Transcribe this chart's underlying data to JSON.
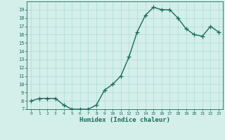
{
  "x": [
    0,
    1,
    2,
    3,
    4,
    5,
    6,
    7,
    8,
    9,
    10,
    11,
    12,
    13,
    14,
    15,
    16,
    17,
    18,
    19,
    20,
    21,
    22,
    23
  ],
  "y": [
    8.0,
    8.3,
    8.3,
    8.3,
    7.5,
    7.0,
    7.0,
    7.0,
    7.5,
    9.3,
    10.0,
    11.0,
    13.3,
    16.3,
    18.3,
    19.3,
    19.0,
    19.0,
    18.0,
    16.7,
    16.0,
    15.8,
    17.0,
    16.3
  ],
  "line_color": "#1a6b5a",
  "marker": "+",
  "marker_size": 4,
  "bg_color": "#d4eeea",
  "grid_color": "#aaddd6",
  "tick_color": "#1a6b5a",
  "label_color": "#1a6b5a",
  "xlabel": "Humidex (Indice chaleur)",
  "ylabel": "",
  "xlim": [
    -0.5,
    23.5
  ],
  "ylim": [
    7,
    20
  ],
  "yticks": [
    7,
    8,
    9,
    10,
    11,
    12,
    13,
    14,
    15,
    16,
    17,
    18,
    19
  ],
  "xticks": [
    0,
    1,
    2,
    3,
    4,
    5,
    6,
    7,
    8,
    9,
    10,
    11,
    12,
    13,
    14,
    15,
    16,
    17,
    18,
    19,
    20,
    21,
    22,
    23
  ],
  "xtick_labels": [
    "0",
    "1",
    "2",
    "3",
    "4",
    "5",
    "6",
    "7",
    "8",
    "9",
    "10",
    "11",
    "12",
    "13",
    "14",
    "15",
    "16",
    "17",
    "18",
    "19",
    "20",
    "21",
    "22",
    "23"
  ],
  "linewidth": 1.0
}
